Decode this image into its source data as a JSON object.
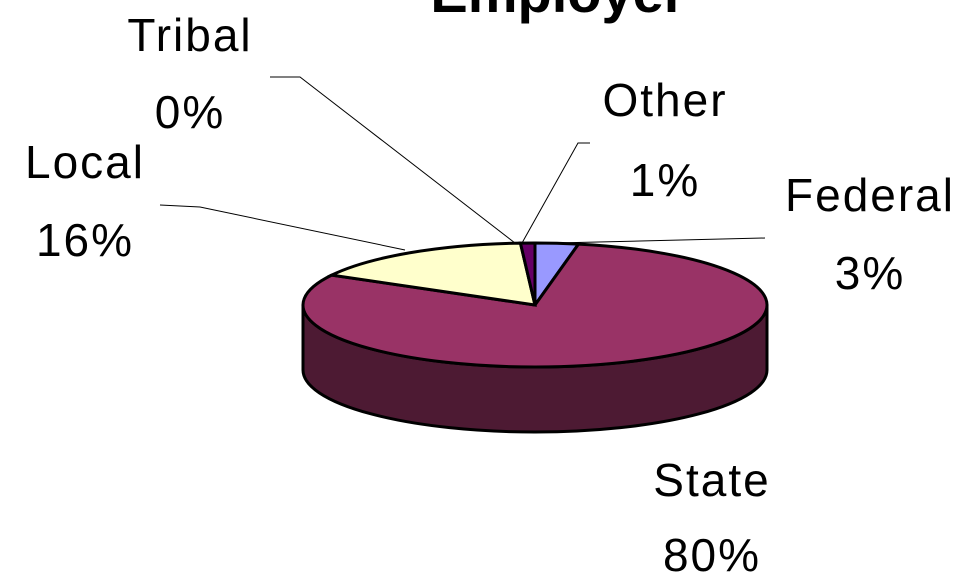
{
  "chart_data": {
    "type": "pie3d",
    "title": "Employer",
    "categories": [
      "Federal",
      "State",
      "Local",
      "Tribal",
      "Other"
    ],
    "values": [
      3,
      80,
      16,
      0,
      1
    ],
    "value_labels": [
      "3%",
      "80%",
      "16%",
      "0%",
      "1%"
    ],
    "colors": [
      "#9999ff",
      "#993366",
      "#ffffcc",
      "#800080",
      "#660066"
    ]
  }
}
